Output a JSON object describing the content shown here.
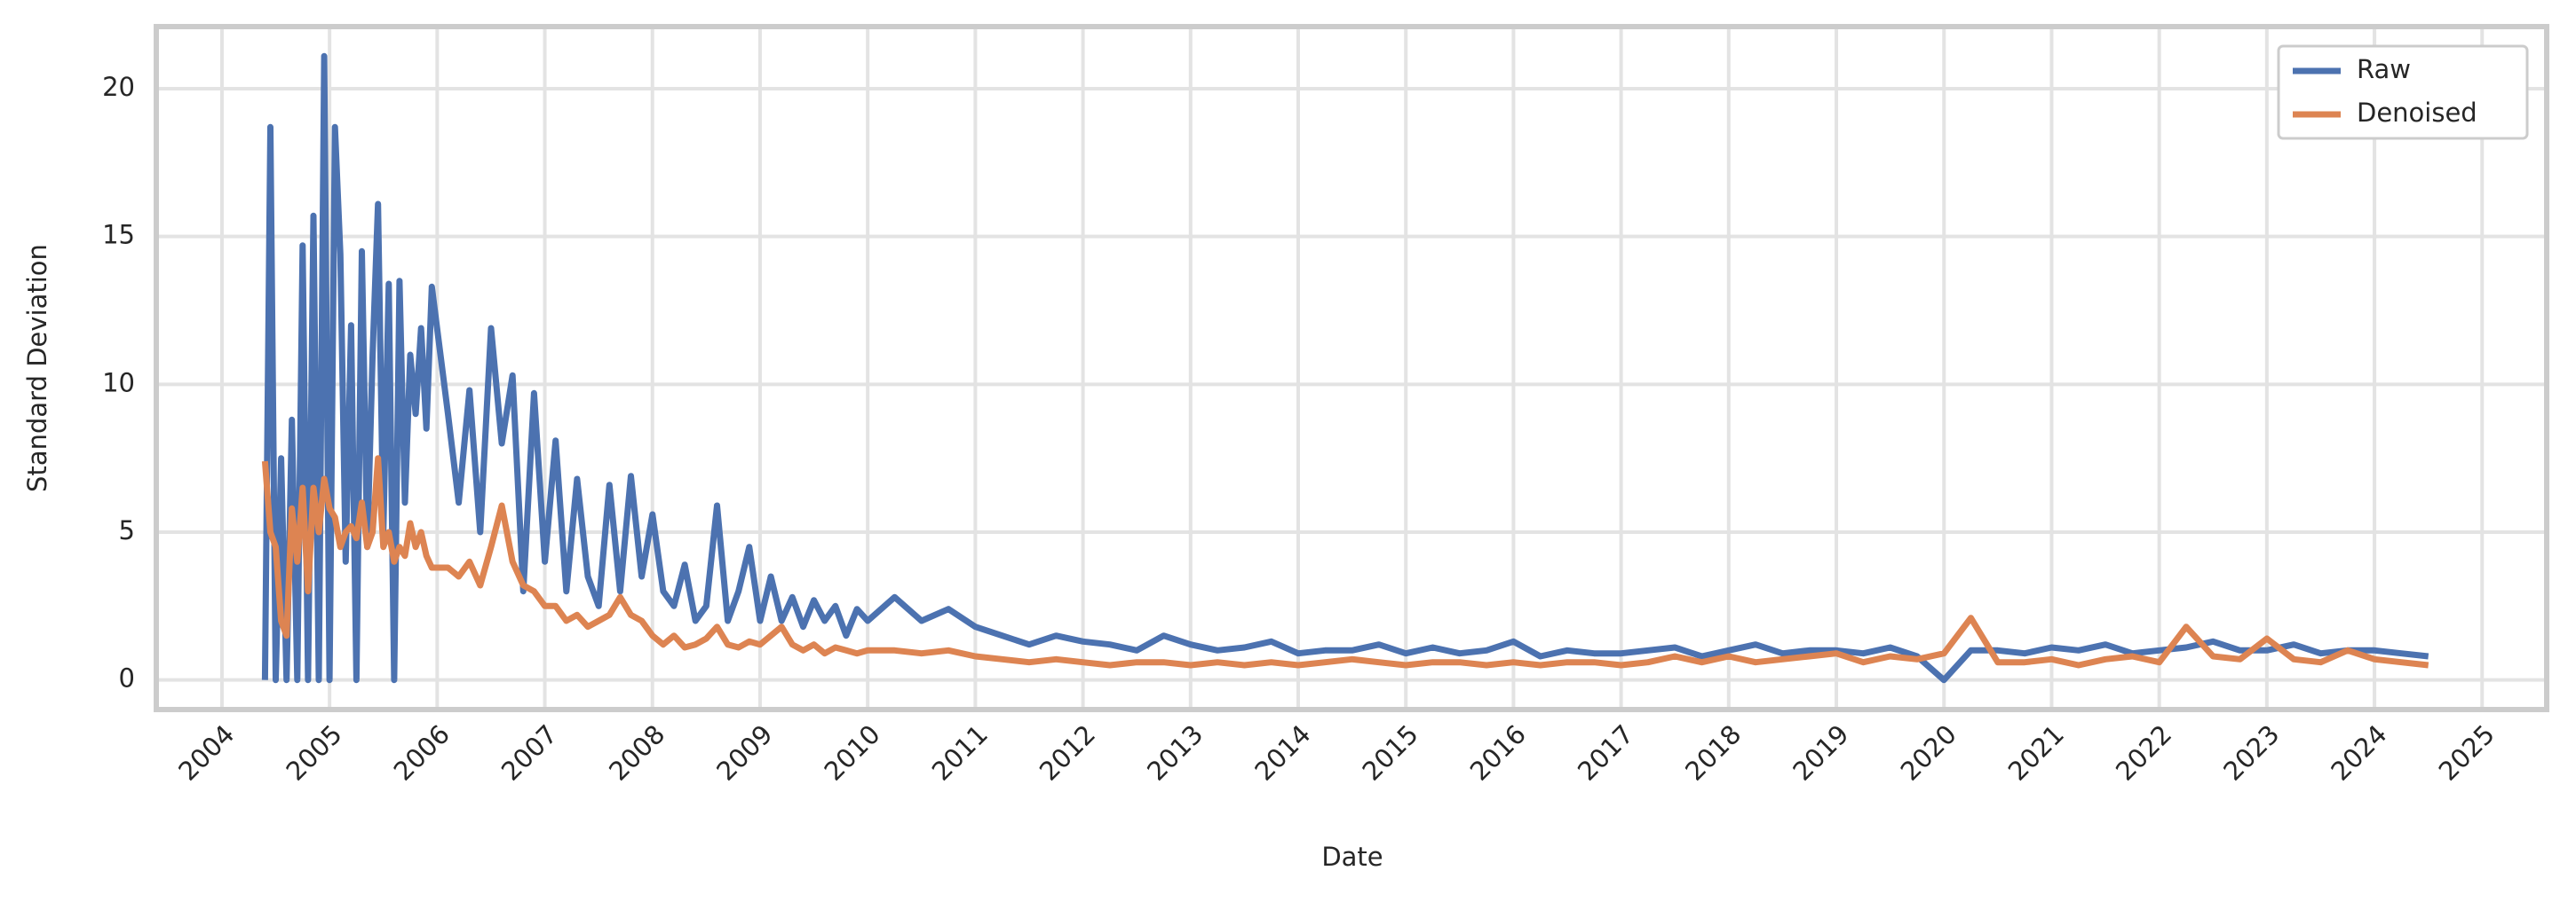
{
  "chart_data": {
    "type": "line",
    "xlabel": "Date",
    "ylabel": "Standard Deviation",
    "x": [
      2004.4,
      2004.45,
      2004.5,
      2004.55,
      2004.6,
      2004.65,
      2004.7,
      2004.75,
      2004.8,
      2004.85,
      2004.9,
      2004.95,
      2005,
      2005.05,
      2005.1,
      2005.15,
      2005.2,
      2005.25,
      2005.3,
      2005.35,
      2005.4,
      2005.45,
      2005.5,
      2005.55,
      2005.6,
      2005.65,
      2005.7,
      2005.75,
      2005.8,
      2005.85,
      2005.9,
      2005.95,
      2006.1,
      2006.2,
      2006.3,
      2006.4,
      2006.5,
      2006.6,
      2006.7,
      2006.8,
      2006.9,
      2007,
      2007.1,
      2007.2,
      2007.3,
      2007.4,
      2007.5,
      2007.6,
      2007.7,
      2007.8,
      2007.9,
      2008,
      2008.1,
      2008.2,
      2008.3,
      2008.4,
      2008.5,
      2008.6,
      2008.7,
      2008.8,
      2008.9,
      2009,
      2009.1,
      2009.2,
      2009.3,
      2009.4,
      2009.5,
      2009.6,
      2009.7,
      2009.8,
      2009.9,
      2010,
      2010.25,
      2010.5,
      2010.75,
      2011,
      2011.25,
      2011.5,
      2011.75,
      2012,
      2012.25,
      2012.5,
      2012.75,
      2013,
      2013.25,
      2013.5,
      2013.75,
      2014,
      2014.25,
      2014.5,
      2014.75,
      2015,
      2015.25,
      2015.5,
      2015.75,
      2016,
      2016.25,
      2016.5,
      2016.75,
      2017,
      2017.25,
      2017.5,
      2017.75,
      2018,
      2018.25,
      2018.5,
      2018.75,
      2019,
      2019.25,
      2019.5,
      2019.75,
      2020,
      2020.25,
      2020.5,
      2020.75,
      2021,
      2021.25,
      2021.5,
      2021.75,
      2022,
      2022.25,
      2022.5,
      2022.75,
      2023,
      2023.25,
      2023.5,
      2023.75,
      2024,
      2024.25,
      2024.5
    ],
    "series": [
      {
        "name": "Raw",
        "color": "#4c72b0",
        "values": [
          0,
          18.7,
          0,
          7.5,
          0,
          8.8,
          0,
          14.7,
          0,
          15.7,
          0,
          21.1,
          0,
          18.7,
          14.4,
          4,
          12,
          0,
          14.5,
          4.5,
          11,
          16.1,
          5,
          13.4,
          0,
          13.5,
          6,
          11,
          9,
          11.9,
          8.5,
          13.3,
          9,
          6,
          9.8,
          5,
          11.9,
          8,
          10.3,
          3,
          9.7,
          4,
          8.1,
          3,
          6.8,
          3.5,
          2.5,
          6.6,
          3,
          6.9,
          3.5,
          5.6,
          3,
          2.5,
          3.9,
          2,
          2.5,
          5.9,
          2,
          3,
          4.5,
          2,
          3.5,
          2,
          2.8,
          1.8,
          2.7,
          2,
          2.5,
          1.5,
          2.4,
          2,
          2.8,
          2,
          2.4,
          1.8,
          1.5,
          1.2,
          1.5,
          1.3,
          1.2,
          1,
          1.5,
          1.2,
          1,
          1.1,
          1.3,
          0.9,
          1,
          1,
          1.2,
          0.9,
          1.1,
          0.9,
          1,
          1.3,
          0.8,
          1,
          0.9,
          0.9,
          1,
          1.1,
          0.8,
          1,
          1.2,
          0.9,
          1,
          1,
          0.9,
          1.1,
          0.8,
          0,
          1,
          1,
          0.9,
          1.1,
          1,
          1.2,
          0.9,
          1,
          1.1,
          1.3,
          1,
          1,
          1.2,
          0.9,
          1,
          1,
          0.9,
          0.8
        ]
      },
      {
        "name": "Denoised",
        "color": "#dd8452",
        "values": [
          7.4,
          5,
          4.5,
          2,
          1.5,
          5.8,
          4,
          6.5,
          3,
          6.5,
          5,
          6.8,
          5.8,
          5.5,
          4.5,
          5,
          5.2,
          4.8,
          6,
          4.5,
          5,
          7.5,
          4.5,
          5,
          4,
          4.5,
          4.2,
          5.3,
          4.5,
          5,
          4.2,
          3.8,
          3.8,
          3.5,
          4,
          3.2,
          4.5,
          5.9,
          4,
          3.2,
          3,
          2.5,
          2.5,
          2,
          2.2,
          1.8,
          2,
          2.2,
          2.8,
          2.2,
          2,
          1.5,
          1.2,
          1.5,
          1.1,
          1.2,
          1.4,
          1.8,
          1.2,
          1.1,
          1.3,
          1.2,
          1.5,
          1.8,
          1.2,
          1,
          1.2,
          0.9,
          1.1,
          1,
          0.9,
          1,
          1,
          0.9,
          1,
          0.8,
          0.7,
          0.6,
          0.7,
          0.6,
          0.5,
          0.6,
          0.6,
          0.5,
          0.6,
          0.5,
          0.6,
          0.5,
          0.6,
          0.7,
          0.6,
          0.5,
          0.6,
          0.6,
          0.5,
          0.6,
          0.5,
          0.6,
          0.6,
          0.5,
          0.6,
          0.8,
          0.6,
          0.8,
          0.6,
          0.7,
          0.8,
          0.9,
          0.6,
          0.8,
          0.7,
          0.9,
          2.1,
          0.6,
          0.6,
          0.7,
          0.5,
          0.7,
          0.8,
          0.6,
          1.8,
          0.8,
          0.7,
          1.4,
          0.7,
          0.6,
          1,
          0.7,
          0.6,
          0.5
        ]
      }
    ],
    "xlim": [
      2003.39,
      2025.6
    ],
    "xticks": [
      2004,
      2005,
      2006,
      2007,
      2008,
      2009,
      2010,
      2011,
      2012,
      2013,
      2014,
      2015,
      2016,
      2017,
      2018,
      2019,
      2020,
      2021,
      2022,
      2023,
      2024,
      2025
    ],
    "ylim": [
      -1,
      22.1
    ],
    "yticks": [
      0,
      5,
      10,
      15,
      20
    ],
    "grid": true,
    "legend": "upper right"
  }
}
